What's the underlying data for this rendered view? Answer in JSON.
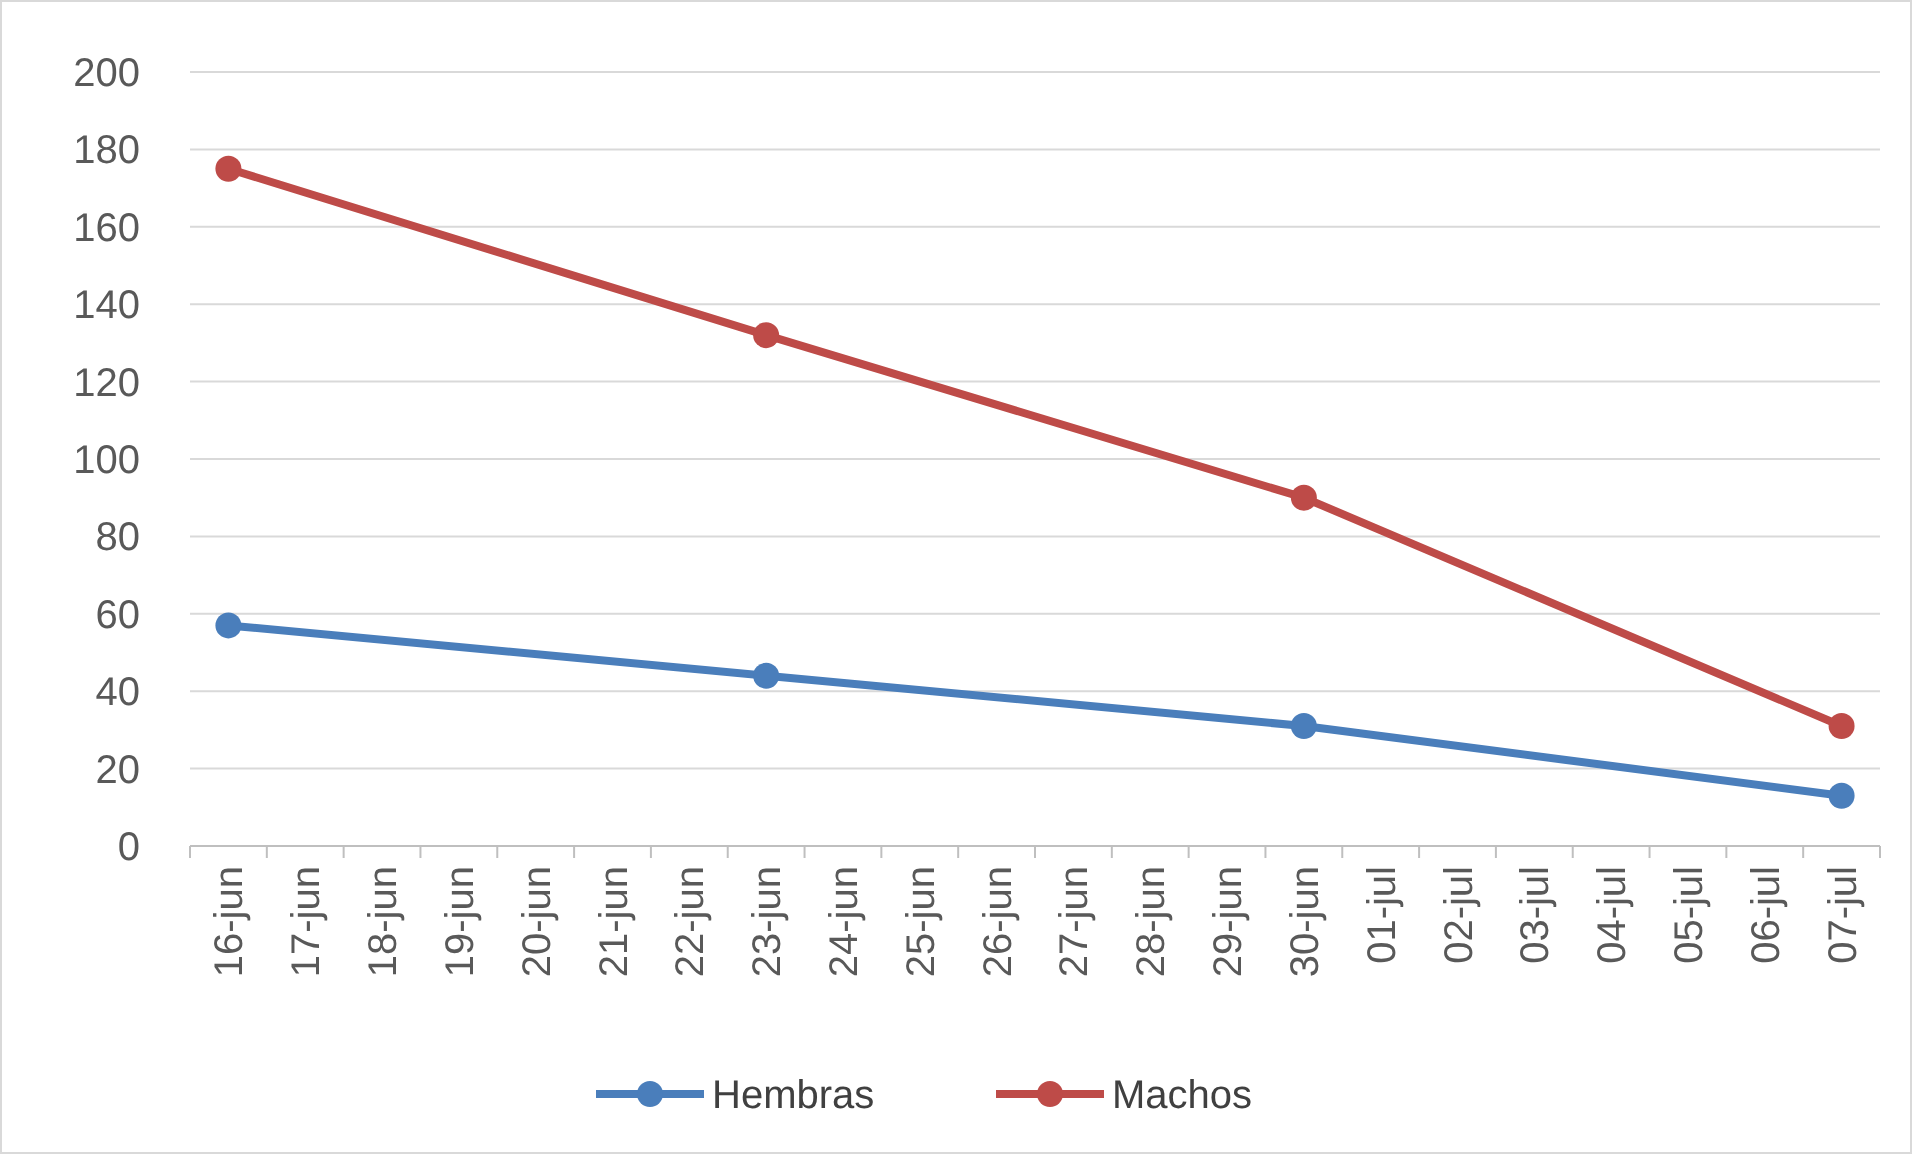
{
  "chart_data": {
    "type": "line",
    "categories": [
      "16-jun",
      "17-jun",
      "18-jun",
      "19-jun",
      "20-jun",
      "21-jun",
      "22-jun",
      "23-jun",
      "24-jun",
      "25-jun",
      "26-jun",
      "27-jun",
      "28-jun",
      "29-jun",
      "30-jun",
      "01-jul",
      "02-jul",
      "03-jul",
      "04-jul",
      "05-jul",
      "06-jul",
      "07-jul"
    ],
    "series": [
      {
        "name": "Hembras",
        "color": "#4a7ebb",
        "x": [
          "16-jun",
          "23-jun",
          "30-jun",
          "07-jul"
        ],
        "values": [
          57,
          44,
          31,
          13
        ]
      },
      {
        "name": "Machos",
        "color": "#be4b48",
        "x": [
          "16-jun",
          "23-jun",
          "30-jun",
          "07-jul"
        ],
        "values": [
          175,
          132,
          90,
          31
        ]
      }
    ],
    "ylim": [
      0,
      200
    ],
    "yticks": [
      0,
      20,
      40,
      60,
      80,
      100,
      120,
      140,
      160,
      180,
      200
    ],
    "grid": "y",
    "legend": "bottom",
    "marker": "circle",
    "line_style": "solid"
  }
}
